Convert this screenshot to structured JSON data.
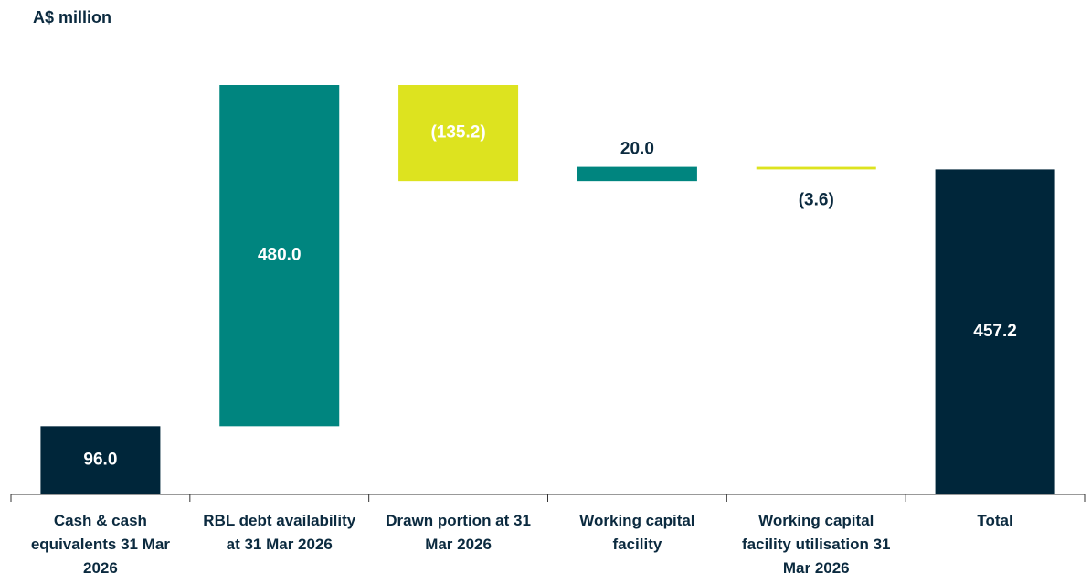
{
  "chart_data": {
    "type": "waterfall",
    "title": "A$ million",
    "categories": [
      "Cash & cash equivalents 31 Mar 2026",
      "RBL debt availability at 31 Mar 2026",
      "Drawn portion at 31 Mar 2026",
      "Working capital facility",
      "Working capital facility utilisation 31 Mar 2026",
      "Total"
    ],
    "values": [
      96.0,
      480.0,
      -135.2,
      20.0,
      -3.6,
      457.2
    ],
    "value_labels": [
      "96.0",
      "480.0",
      "(135.2)",
      "20.0",
      "(3.6)",
      "457.2"
    ],
    "measure": [
      "absolute",
      "relative",
      "relative",
      "relative",
      "relative",
      "total"
    ],
    "colors": {
      "absolute": "#00263a",
      "total": "#00263a",
      "increase": "#00857f",
      "decrease": "#dde31f"
    }
  }
}
